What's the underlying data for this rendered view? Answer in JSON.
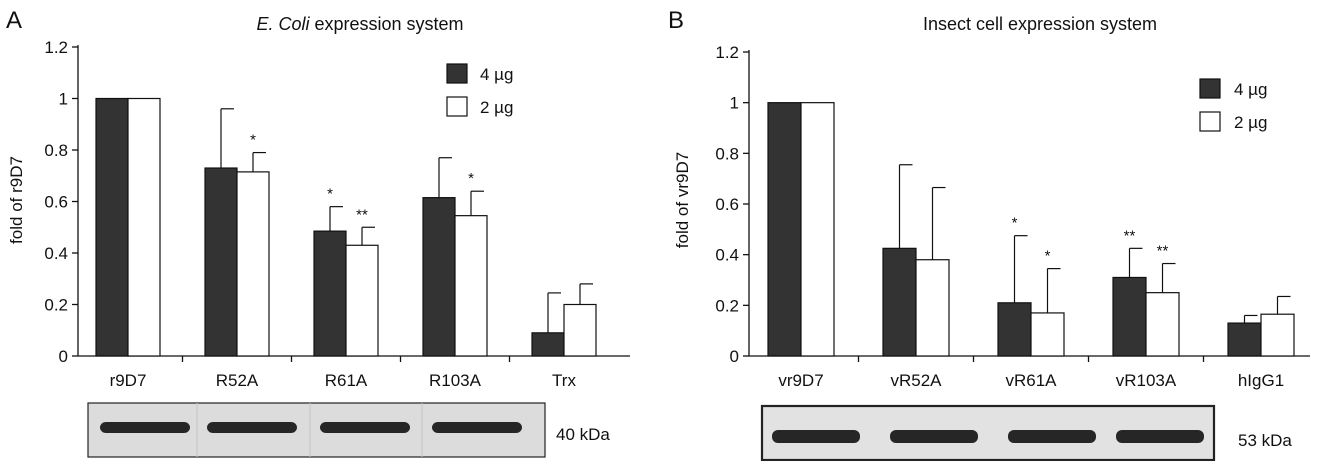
{
  "chart_data": [
    {
      "type": "bar",
      "panel_label": "A",
      "title_italic": "E. Coli",
      "title_rest": " expression system",
      "ylabel": "fold of r9D7",
      "ylim": [
        0,
        1.2
      ],
      "yticks": [
        "0",
        "0.2",
        "0.4",
        "0.6",
        "0.8",
        "1",
        "1.2"
      ],
      "categories": [
        "r9D7",
        "R52A",
        "R61A",
        "R103A",
        "Trx"
      ],
      "series": [
        {
          "name": "4 µg",
          "color": "#333333",
          "values": [
            1.0,
            0.73,
            0.485,
            0.615,
            0.09
          ],
          "errors": [
            0,
            0.23,
            0.095,
            0.155,
            0.155
          ],
          "sig": [
            "",
            "",
            "*",
            "",
            ""
          ]
        },
        {
          "name": "2 µg",
          "color": "#ffffff",
          "values": [
            1.0,
            0.715,
            0.43,
            0.545,
            0.2
          ],
          "errors": [
            0,
            0.075,
            0.07,
            0.095,
            0.08
          ],
          "sig": [
            "",
            "*",
            "**",
            "*",
            ""
          ]
        }
      ],
      "legend_position": "top-right",
      "blot_label": "40 kDa"
    },
    {
      "type": "bar",
      "panel_label": "B",
      "title_italic": "",
      "title_rest": "Insect cell expression system",
      "ylabel": "fold of vr9D7",
      "ylim": [
        0,
        1.2
      ],
      "yticks": [
        "0",
        "0.2",
        "0.4",
        "0.6",
        "0.8",
        "1",
        "1.2"
      ],
      "categories": [
        "vr9D7",
        "vR52A",
        "vR61A",
        "vR103A",
        "hIgG1"
      ],
      "series": [
        {
          "name": "4 µg",
          "color": "#333333",
          "values": [
            1.0,
            0.425,
            0.21,
            0.31,
            0.13
          ],
          "errors": [
            0,
            0.33,
            0.265,
            0.115,
            0.03
          ],
          "sig": [
            "",
            "",
            "*",
            "**",
            ""
          ]
        },
        {
          "name": "2 µg",
          "color": "#ffffff",
          "values": [
            1.0,
            0.38,
            0.17,
            0.25,
            0.165
          ],
          "errors": [
            0,
            0.285,
            0.175,
            0.115,
            0.07
          ],
          "sig": [
            "",
            "",
            "*",
            "**",
            ""
          ]
        }
      ],
      "legend_position": "top-right",
      "blot_label": "53 kDa"
    }
  ]
}
